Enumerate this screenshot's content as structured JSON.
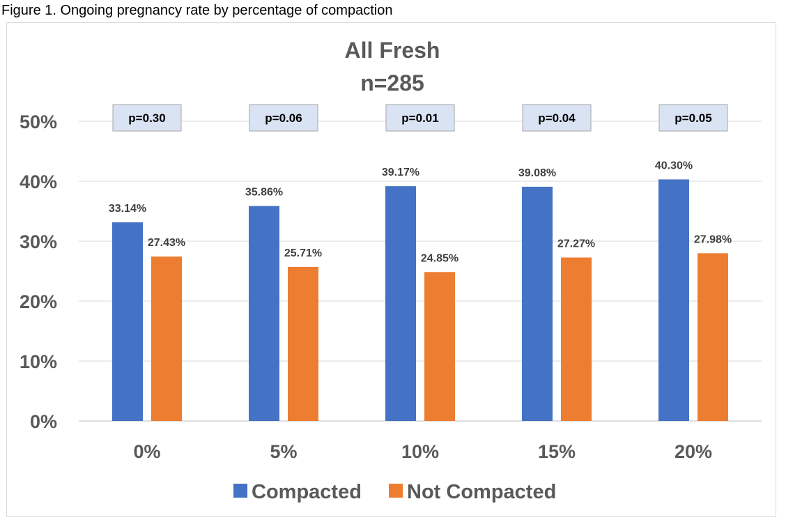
{
  "caption": "Figure 1. Ongoing pregnancy rate by percentage of compaction",
  "chart_data": {
    "type": "bar",
    "title": "All Fresh",
    "subtitle": "n=285",
    "categories": [
      "0%",
      "5%",
      "10%",
      "15%",
      "20%"
    ],
    "series": [
      {
        "name": "Compacted",
        "color": "#4472C4",
        "values": [
          33.14,
          35.86,
          39.17,
          39.08,
          40.3
        ],
        "labels": [
          "33.14%",
          "35.86%",
          "39.17%",
          "39.08%",
          "40.30%"
        ]
      },
      {
        "name": "Not Compacted",
        "color": "#ED7D31",
        "values": [
          27.43,
          25.71,
          24.85,
          27.27,
          27.98
        ],
        "labels": [
          "27.43%",
          "25.71%",
          "24.85%",
          "27.27%",
          "27.98%"
        ]
      }
    ],
    "annotations": [
      "p=0.30",
      "p=0.06",
      "p=0.01",
      "p=0.04",
      "p=0.05"
    ],
    "yticks": [
      "0%",
      "10%",
      "20%",
      "30%",
      "40%",
      "50%"
    ],
    "ylim": [
      0,
      50
    ],
    "grid": true,
    "legend": "bottom"
  }
}
